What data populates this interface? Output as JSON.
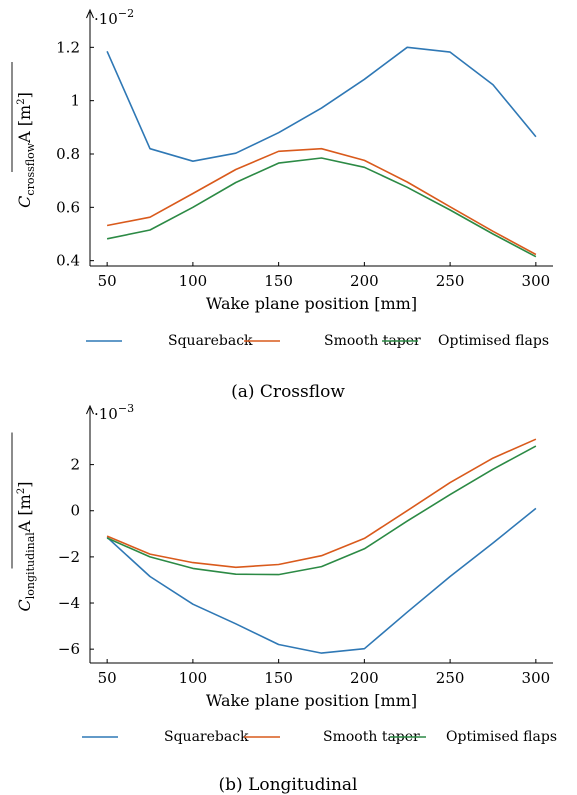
{
  "chart_data": [
    {
      "type": "line",
      "caption": "(a) Crossflow",
      "xlabel": "Wake plane position [mm]",
      "ylabel_main": "C",
      "ylabel_sub": "crossflow",
      "ylabel_tail": "A [m",
      "ylabel_sup": "2",
      "ylabel_end": "]",
      "multiplier_base": "·10",
      "multiplier_exp": "−2",
      "xlim": [
        40,
        310
      ],
      "ylim": [
        0.38,
        1.25
      ],
      "xticks": [
        50,
        100,
        150,
        200,
        250,
        300
      ],
      "yticks": [
        0.4,
        0.6,
        0.8,
        1.0,
        1.2
      ],
      "ytick_labels": [
        "0.4",
        "0.6",
        "0.8",
        "1",
        "1.2"
      ],
      "series": [
        {
          "name": "Squareback",
          "color": "#2f78b5",
          "x": [
            50,
            75,
            100,
            125,
            150,
            175,
            200,
            225,
            250,
            275,
            300
          ],
          "y": [
            1.185,
            0.82,
            0.773,
            0.803,
            0.88,
            0.972,
            1.08,
            1.2,
            1.182,
            1.06,
            0.865
          ]
        },
        {
          "name": "Smooth taper",
          "color": "#d95a1c",
          "x": [
            50,
            75,
            100,
            125,
            150,
            175,
            200,
            225,
            250,
            275,
            300
          ],
          "y": [
            0.532,
            0.563,
            0.652,
            0.742,
            0.81,
            0.82,
            0.776,
            0.695,
            0.602,
            0.51,
            0.423
          ]
        },
        {
          "name": "Optimised flaps",
          "color": "#2c8a45",
          "x": [
            50,
            75,
            100,
            125,
            150,
            175,
            200,
            225,
            250,
            275,
            300
          ],
          "y": [
            0.482,
            0.515,
            0.6,
            0.693,
            0.766,
            0.785,
            0.75,
            0.675,
            0.59,
            0.5,
            0.415
          ]
        }
      ]
    },
    {
      "type": "line",
      "caption": "(b) Longitudinal",
      "xlabel": "Wake plane position [mm]",
      "ylabel_main": "C",
      "ylabel_sub": "longitudinal",
      "ylabel_tail": "A [m",
      "ylabel_sup": "2",
      "ylabel_end": "]",
      "multiplier_base": "·10",
      "multiplier_exp": "−3",
      "xlim": [
        40,
        310
      ],
      "ylim": [
        -6.6,
        3.5
      ],
      "xticks": [
        50,
        100,
        150,
        200,
        250,
        300
      ],
      "yticks": [
        -6,
        -4,
        -2,
        0,
        2
      ],
      "ytick_labels": [
        "−6",
        "−4",
        "−2",
        "0",
        "2"
      ],
      "series": [
        {
          "name": "Squareback",
          "color": "#2f78b5",
          "x": [
            50,
            75,
            100,
            125,
            150,
            175,
            200,
            225,
            250,
            275,
            300
          ],
          "y": [
            -1.15,
            -2.85,
            -4.05,
            -4.9,
            -5.8,
            -6.17,
            -5.98,
            -4.4,
            -2.85,
            -1.4,
            0.1
          ]
        },
        {
          "name": "Smooth taper",
          "color": "#d95a1c",
          "x": [
            50,
            75,
            100,
            125,
            150,
            175,
            200,
            225,
            250,
            275,
            300
          ],
          "y": [
            -1.1,
            -1.88,
            -2.25,
            -2.45,
            -2.33,
            -1.95,
            -1.2,
            0.0,
            1.22,
            2.28,
            3.1
          ]
        },
        {
          "name": "Optimised flaps",
          "color": "#2c8a45",
          "x": [
            50,
            75,
            100,
            125,
            150,
            175,
            200,
            225,
            250,
            275,
            300
          ],
          "y": [
            -1.18,
            -2.0,
            -2.5,
            -2.75,
            -2.77,
            -2.42,
            -1.65,
            -0.45,
            0.7,
            1.8,
            2.8
          ]
        }
      ]
    }
  ]
}
